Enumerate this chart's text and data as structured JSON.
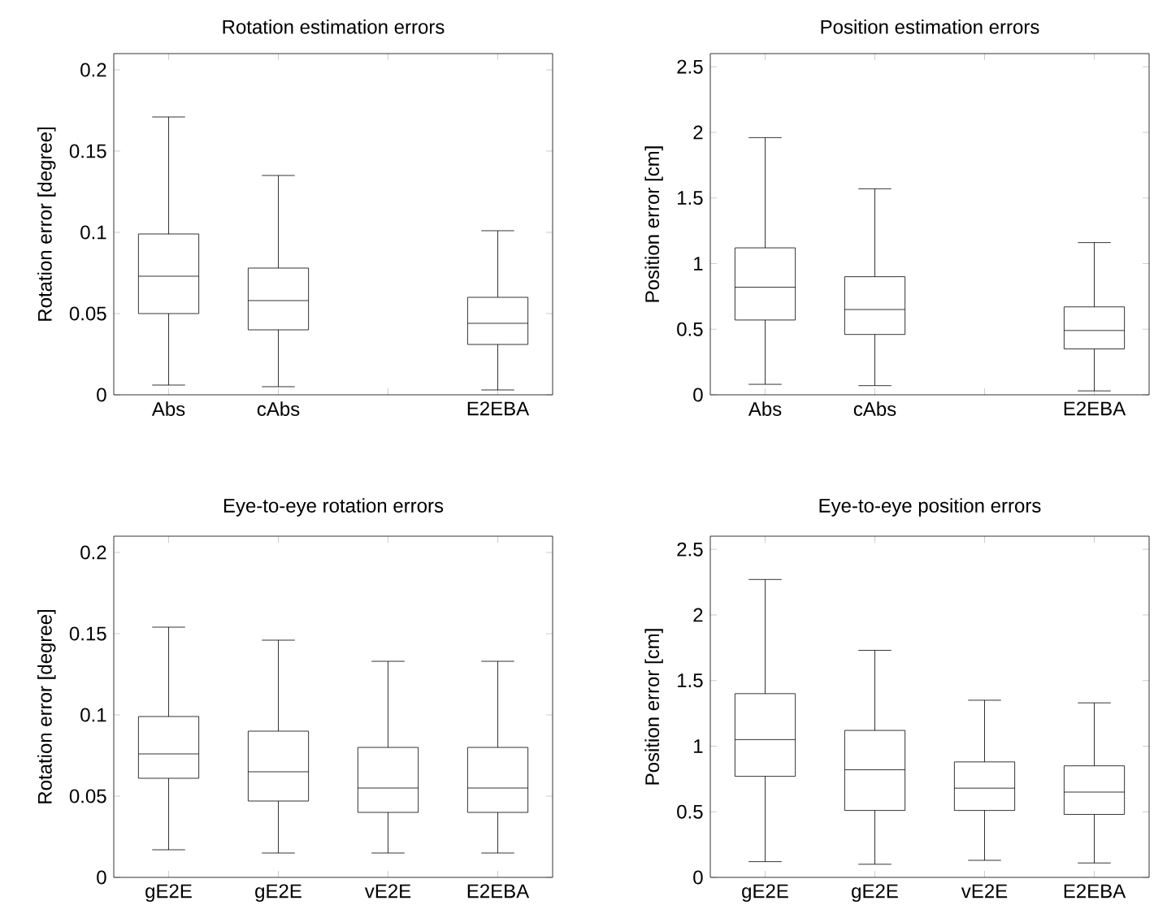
{
  "chart_data": [
    {
      "type": "box",
      "title": "Rotation estimation errors",
      "ylabel": "Rotation error [degree]",
      "categories": [
        "Abs",
        "cAbs",
        null,
        "E2EBA"
      ],
      "ylim": [
        0,
        0.21
      ],
      "yticks": [
        0,
        0.05,
        0.1,
        0.15,
        0.2
      ],
      "boxes": [
        {
          "low": 0.006,
          "q1": 0.05,
          "median": 0.073,
          "q3": 0.099,
          "high": 0.171
        },
        {
          "low": 0.005,
          "q1": 0.04,
          "median": 0.058,
          "q3": 0.078,
          "high": 0.135
        },
        null,
        {
          "low": 0.003,
          "q1": 0.031,
          "median": 0.044,
          "q3": 0.06,
          "high": 0.101
        }
      ]
    },
    {
      "type": "box",
      "title": "Position estimation errors",
      "ylabel": "Position error [cm]",
      "categories": [
        "Abs",
        "cAbs",
        null,
        "E2EBA"
      ],
      "ylim": [
        0,
        2.6
      ],
      "yticks": [
        0,
        0.5,
        1,
        1.5,
        2,
        2.5
      ],
      "boxes": [
        {
          "low": 0.08,
          "q1": 0.57,
          "median": 0.82,
          "q3": 1.12,
          "high": 1.96
        },
        {
          "low": 0.07,
          "q1": 0.46,
          "median": 0.65,
          "q3": 0.9,
          "high": 1.57
        },
        null,
        {
          "low": 0.03,
          "q1": 0.35,
          "median": 0.49,
          "q3": 0.67,
          "high": 1.16
        }
      ]
    },
    {
      "type": "box",
      "title": "Eye-to-eye rotation errors",
      "ylabel": "Rotation error [degree]",
      "categories": [
        "gE2E",
        "gE2E",
        "vE2E",
        "E2EBA"
      ],
      "ylim": [
        0,
        0.21
      ],
      "yticks": [
        0,
        0.05,
        0.1,
        0.15,
        0.2
      ],
      "boxes": [
        {
          "low": 0.017,
          "q1": 0.061,
          "median": 0.076,
          "q3": 0.099,
          "high": 0.154
        },
        {
          "low": 0.015,
          "q1": 0.047,
          "median": 0.065,
          "q3": 0.09,
          "high": 0.146
        },
        {
          "low": 0.015,
          "q1": 0.04,
          "median": 0.055,
          "q3": 0.08,
          "high": 0.133
        },
        {
          "low": 0.015,
          "q1": 0.04,
          "median": 0.055,
          "q3": 0.08,
          "high": 0.133
        }
      ]
    },
    {
      "type": "box",
      "title": "Eye-to-eye position errors",
      "ylabel": "Position error [cm]",
      "categories": [
        "gE2E",
        "gE2E",
        "vE2E",
        "E2EBA"
      ],
      "ylim": [
        0,
        2.6
      ],
      "yticks": [
        0,
        0.5,
        1,
        1.5,
        2,
        2.5
      ],
      "boxes": [
        {
          "low": 0.12,
          "q1": 0.77,
          "median": 1.05,
          "q3": 1.4,
          "high": 2.27
        },
        {
          "low": 0.1,
          "q1": 0.51,
          "median": 0.82,
          "q3": 1.12,
          "high": 1.73
        },
        {
          "low": 0.13,
          "q1": 0.51,
          "median": 0.68,
          "q3": 0.88,
          "high": 1.35
        },
        {
          "low": 0.11,
          "q1": 0.48,
          "median": 0.65,
          "q3": 0.85,
          "high": 1.33
        }
      ]
    }
  ]
}
